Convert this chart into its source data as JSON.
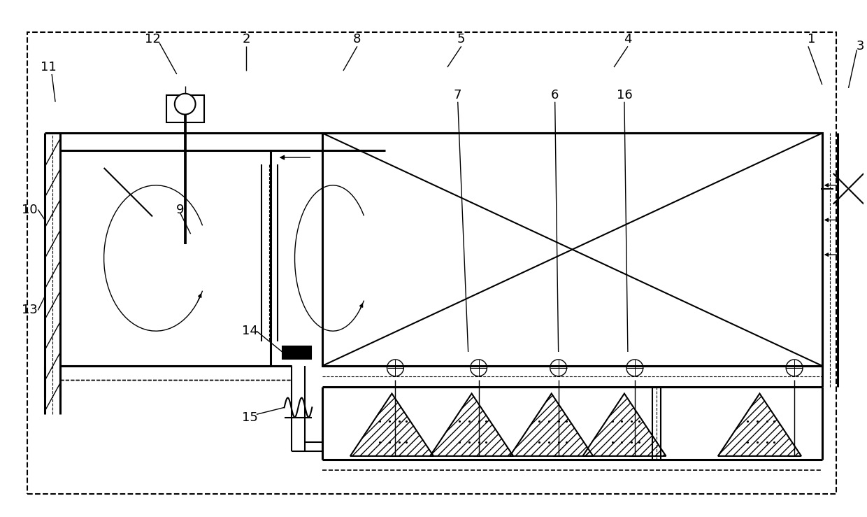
{
  "bg": "#ffffff",
  "lc": "#000000",
  "fw": 12.4,
  "fh": 7.39
}
